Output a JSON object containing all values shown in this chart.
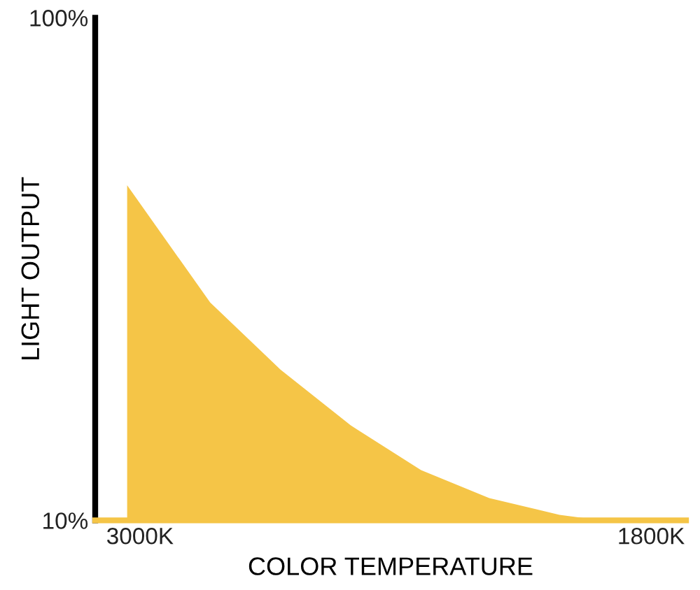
{
  "chart_data": {
    "type": "area",
    "xlabel": "COLOR TEMPERATURE",
    "ylabel": "LIGHT OUTPUT",
    "x": [
      3030,
      2835,
      2670,
      2505,
      2340,
      2180,
      2015,
      1915
    ],
    "series": [
      {
        "color": "#f5c547",
        "values": [
          70,
          49,
          37,
          27,
          19,
          14,
          11,
          10
        ]
      }
    ],
    "xlim": [
      3105,
      1718
    ],
    "xticks": [
      {
        "value": 3000,
        "label": "3000K"
      },
      {
        "value": 1800,
        "label": "1800K"
      }
    ],
    "ylim": [
      10,
      100
    ],
    "yticks": [
      {
        "value": 10,
        "label": "10%"
      },
      {
        "value": 100,
        "label": "100%"
      }
    ],
    "grid": false
  }
}
